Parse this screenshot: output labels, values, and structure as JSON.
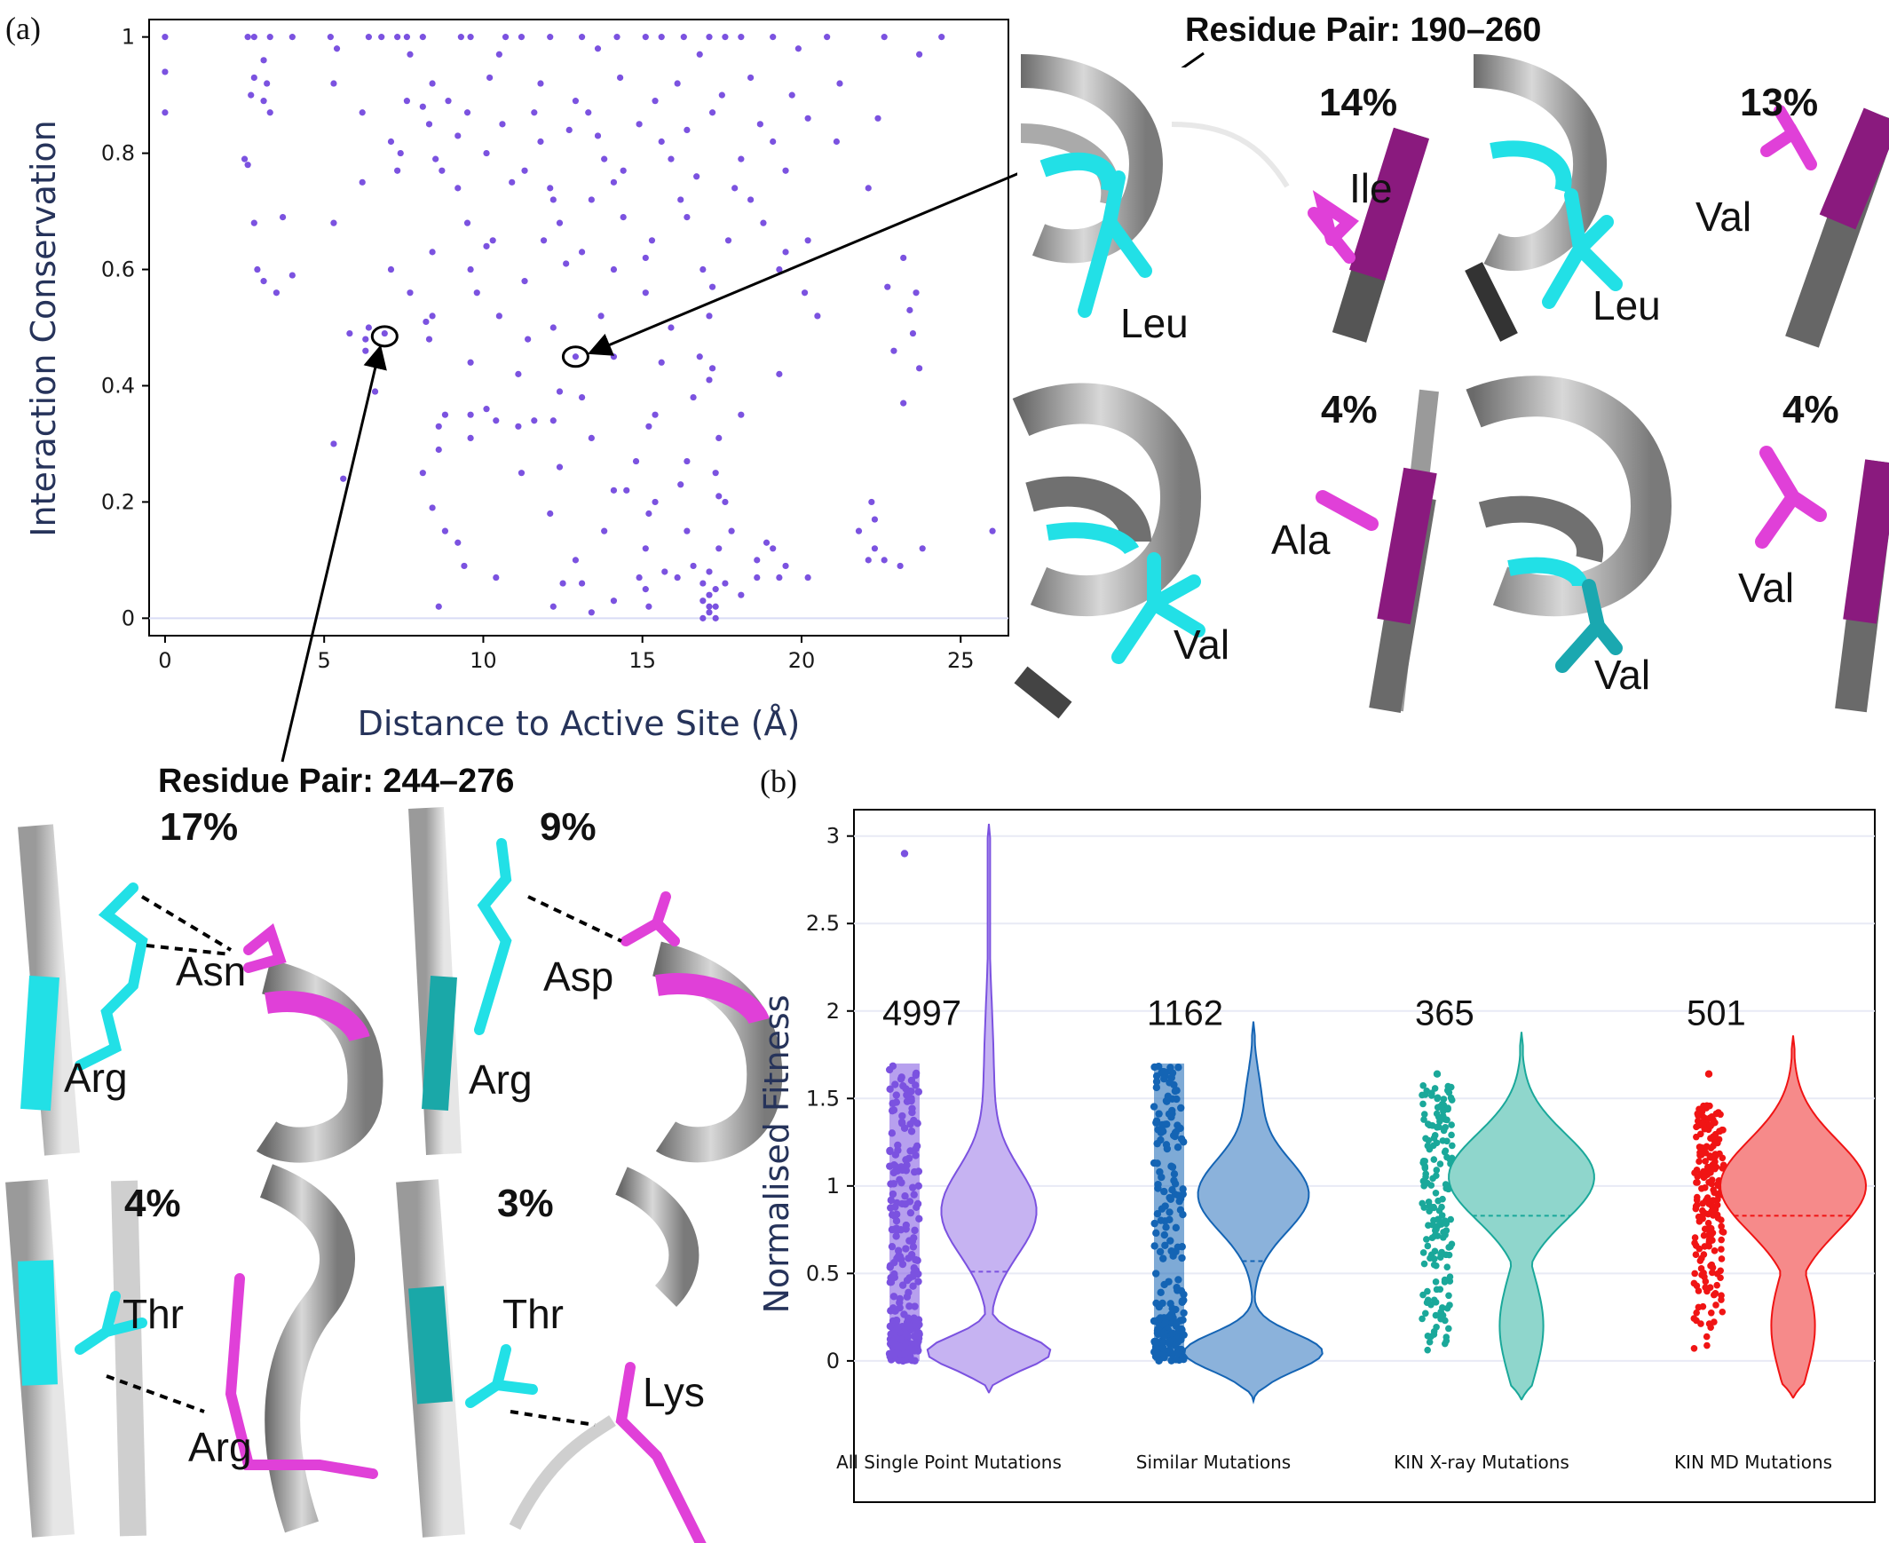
{
  "figure": {
    "panel_a_label": "(a)",
    "panel_b_label": "(b)"
  },
  "chart_data": [
    {
      "type": "scatter",
      "panel": "(a)",
      "xlabel": "Distance to Active Site (Å)",
      "ylabel": "Interaction Conservation",
      "xlim": [
        -0.5,
        26.5
      ],
      "ylim": [
        -0.03,
        1.03
      ],
      "xticks": [
        0,
        5,
        10,
        15,
        20,
        25
      ],
      "yticks": [
        0,
        0.2,
        0.4,
        0.6,
        0.8,
        1
      ],
      "grid": false,
      "color": "#7b52e0",
      "points": [
        [
          0,
          1
        ],
        [
          0,
          0.94
        ],
        [
          0,
          0.87
        ],
        [
          2.6,
          1
        ],
        [
          2.8,
          1
        ],
        [
          3.3,
          1
        ],
        [
          4,
          1
        ],
        [
          5.2,
          1
        ],
        [
          6.4,
          1
        ],
        [
          6.8,
          1
        ],
        [
          7.3,
          1
        ],
        [
          7.6,
          1
        ],
        [
          8.1,
          1
        ],
        [
          9.3,
          1
        ],
        [
          9.6,
          1
        ],
        [
          10.7,
          1
        ],
        [
          11.2,
          1
        ],
        [
          12.1,
          1
        ],
        [
          13.1,
          1
        ],
        [
          14.2,
          1
        ],
        [
          15.1,
          1
        ],
        [
          15.6,
          1
        ],
        [
          16.3,
          1
        ],
        [
          17.1,
          1
        ],
        [
          17.6,
          1
        ],
        [
          18.1,
          1
        ],
        [
          19.1,
          1
        ],
        [
          20.8,
          1
        ],
        [
          22.6,
          1
        ],
        [
          24.4,
          1
        ],
        [
          3.1,
          0.96
        ],
        [
          5.4,
          0.98
        ],
        [
          7.7,
          0.97
        ],
        [
          10.5,
          0.97
        ],
        [
          13.6,
          0.98
        ],
        [
          16.8,
          0.97
        ],
        [
          19.9,
          0.98
        ],
        [
          23.7,
          0.97
        ],
        [
          2.8,
          0.93
        ],
        [
          3.2,
          0.92
        ],
        [
          5.3,
          0.92
        ],
        [
          8.4,
          0.92
        ],
        [
          10.2,
          0.93
        ],
        [
          11.8,
          0.92
        ],
        [
          14.3,
          0.93
        ],
        [
          16.1,
          0.92
        ],
        [
          18.4,
          0.93
        ],
        [
          21.2,
          0.92
        ],
        [
          2.7,
          0.9
        ],
        [
          3.1,
          0.89
        ],
        [
          7.6,
          0.89
        ],
        [
          8.9,
          0.89
        ],
        [
          12.9,
          0.89
        ],
        [
          15.4,
          0.89
        ],
        [
          17.5,
          0.9
        ],
        [
          19.7,
          0.9
        ],
        [
          3.3,
          0.87
        ],
        [
          6.2,
          0.87
        ],
        [
          8.1,
          0.88
        ],
        [
          9.5,
          0.87
        ],
        [
          11.6,
          0.87
        ],
        [
          13.3,
          0.87
        ],
        [
          17.2,
          0.87
        ],
        [
          20.2,
          0.86
        ],
        [
          22.4,
          0.86
        ],
        [
          8.3,
          0.85
        ],
        [
          10.6,
          0.85
        ],
        [
          12.7,
          0.84
        ],
        [
          14.9,
          0.85
        ],
        [
          16.4,
          0.84
        ],
        [
          18.7,
          0.85
        ],
        [
          7.1,
          0.82
        ],
        [
          9.2,
          0.83
        ],
        [
          11.8,
          0.82
        ],
        [
          13.6,
          0.83
        ],
        [
          15.6,
          0.82
        ],
        [
          19.1,
          0.82
        ],
        [
          21.1,
          0.82
        ],
        [
          2.5,
          0.79
        ],
        [
          2.6,
          0.78
        ],
        [
          7.4,
          0.8
        ],
        [
          8.5,
          0.79
        ],
        [
          10.1,
          0.8
        ],
        [
          13.8,
          0.79
        ],
        [
          15.9,
          0.79
        ],
        [
          18.1,
          0.79
        ],
        [
          7.3,
          0.77
        ],
        [
          8.7,
          0.77
        ],
        [
          11.3,
          0.77
        ],
        [
          14.4,
          0.77
        ],
        [
          16.7,
          0.76
        ],
        [
          19.5,
          0.77
        ],
        [
          6.2,
          0.75
        ],
        [
          9.2,
          0.74
        ],
        [
          10.9,
          0.75
        ],
        [
          12.1,
          0.74
        ],
        [
          14.1,
          0.75
        ],
        [
          17.9,
          0.74
        ],
        [
          22.1,
          0.74
        ],
        [
          12.2,
          0.72
        ],
        [
          13.4,
          0.72
        ],
        [
          16.2,
          0.72
        ],
        [
          18.4,
          0.72
        ],
        [
          3.7,
          0.69
        ],
        [
          2.8,
          0.68
        ],
        [
          5.3,
          0.68
        ],
        [
          9.5,
          0.68
        ],
        [
          12.4,
          0.68
        ],
        [
          14.4,
          0.69
        ],
        [
          16.4,
          0.69
        ],
        [
          18.8,
          0.68
        ],
        [
          10.3,
          0.65
        ],
        [
          11.9,
          0.65
        ],
        [
          15.3,
          0.65
        ],
        [
          17.7,
          0.65
        ],
        [
          20.2,
          0.65
        ],
        [
          8.4,
          0.63
        ],
        [
          10.1,
          0.64
        ],
        [
          13.1,
          0.63
        ],
        [
          15.1,
          0.62
        ],
        [
          19.5,
          0.63
        ],
        [
          23.2,
          0.62
        ],
        [
          2.9,
          0.6
        ],
        [
          7.1,
          0.6
        ],
        [
          9.6,
          0.6
        ],
        [
          12.6,
          0.61
        ],
        [
          14.1,
          0.6
        ],
        [
          16.9,
          0.6
        ],
        [
          19.3,
          0.6
        ],
        [
          3.1,
          0.58
        ],
        [
          4,
          0.59
        ],
        [
          11.3,
          0.58
        ],
        [
          17.2,
          0.57
        ],
        [
          22.7,
          0.57
        ],
        [
          3.5,
          0.56
        ],
        [
          7.7,
          0.56
        ],
        [
          9.8,
          0.56
        ],
        [
          15.1,
          0.56
        ],
        [
          20.1,
          0.56
        ],
        [
          23.6,
          0.56
        ],
        [
          8.4,
          0.52
        ],
        [
          10.5,
          0.52
        ],
        [
          13.7,
          0.52
        ],
        [
          17.1,
          0.52
        ],
        [
          20.5,
          0.52
        ],
        [
          23.4,
          0.53
        ],
        [
          6.9,
          0.49
        ],
        [
          6.4,
          0.5
        ],
        [
          8.2,
          0.51
        ],
        [
          12.2,
          0.5
        ],
        [
          15.9,
          0.5
        ],
        [
          23.5,
          0.49
        ],
        [
          5.8,
          0.49
        ],
        [
          6.3,
          0.48
        ],
        [
          8.3,
          0.48
        ],
        [
          11.4,
          0.48
        ],
        [
          6.3,
          0.46
        ],
        [
          12.9,
          0.45
        ],
        [
          14.1,
          0.45
        ],
        [
          16.8,
          0.45
        ],
        [
          22.9,
          0.46
        ],
        [
          6.6,
          0.44
        ],
        [
          9.6,
          0.44
        ],
        [
          15.6,
          0.44
        ],
        [
          17.2,
          0.43
        ],
        [
          19.3,
          0.42
        ],
        [
          23.7,
          0.43
        ],
        [
          11.1,
          0.42
        ],
        [
          17.1,
          0.41
        ],
        [
          6.6,
          0.39
        ],
        [
          12.4,
          0.39
        ],
        [
          16.6,
          0.38
        ],
        [
          13.1,
          0.38
        ],
        [
          8.8,
          0.35
        ],
        [
          9.6,
          0.35
        ],
        [
          10.1,
          0.36
        ],
        [
          11.6,
          0.34
        ],
        [
          15.4,
          0.35
        ],
        [
          23.2,
          0.37
        ],
        [
          8.6,
          0.33
        ],
        [
          10.4,
          0.34
        ],
        [
          11.1,
          0.33
        ],
        [
          12.2,
          0.34
        ],
        [
          18.1,
          0.35
        ],
        [
          15.2,
          0.33
        ],
        [
          5.3,
          0.3
        ],
        [
          8.6,
          0.29
        ],
        [
          9.6,
          0.31
        ],
        [
          13.4,
          0.31
        ],
        [
          17.4,
          0.31
        ],
        [
          14.8,
          0.27
        ],
        [
          16.4,
          0.27
        ],
        [
          8.1,
          0.25
        ],
        [
          11.2,
          0.25
        ],
        [
          12.4,
          0.26
        ],
        [
          17.3,
          0.25
        ],
        [
          5.6,
          0.24
        ],
        [
          14.1,
          0.22
        ],
        [
          14.5,
          0.22
        ],
        [
          16.2,
          0.23
        ],
        [
          17.4,
          0.21
        ],
        [
          15.4,
          0.2
        ],
        [
          17.6,
          0.2
        ],
        [
          8.4,
          0.19
        ],
        [
          12.1,
          0.18
        ],
        [
          15.2,
          0.18
        ],
        [
          22.2,
          0.2
        ],
        [
          22.3,
          0.17
        ],
        [
          8.8,
          0.15
        ],
        [
          13.8,
          0.15
        ],
        [
          16.4,
          0.15
        ],
        [
          17.8,
          0.15
        ],
        [
          21.8,
          0.15
        ],
        [
          26,
          0.15
        ],
        [
          9.2,
          0.13
        ],
        [
          15.1,
          0.12
        ],
        [
          17.4,
          0.12
        ],
        [
          18.9,
          0.13
        ],
        [
          19.1,
          0.12
        ],
        [
          22.3,
          0.12
        ],
        [
          23.8,
          0.12
        ],
        [
          18.6,
          0.1
        ],
        [
          22.1,
          0.1
        ],
        [
          22.6,
          0.1
        ],
        [
          23.1,
          0.09
        ],
        [
          12.9,
          0.1
        ],
        [
          9.4,
          0.09
        ],
        [
          10.4,
          0.07
        ],
        [
          15.7,
          0.08
        ],
        [
          16.6,
          0.09
        ],
        [
          17.1,
          0.08
        ],
        [
          19.3,
          0.07
        ],
        [
          19.5,
          0.09
        ],
        [
          20.2,
          0.07
        ],
        [
          12.5,
          0.06
        ],
        [
          13.1,
          0.06
        ],
        [
          14.9,
          0.07
        ],
        [
          16.1,
          0.07
        ],
        [
          17.6,
          0.06
        ],
        [
          18.6,
          0.07
        ],
        [
          15.1,
          0.05
        ],
        [
          16.9,
          0.06
        ],
        [
          17.3,
          0.05
        ],
        [
          18.1,
          0.04
        ],
        [
          17.1,
          0.04
        ],
        [
          16.9,
          0.03
        ],
        [
          17.3,
          0.02
        ],
        [
          14.1,
          0.03
        ],
        [
          12.2,
          0.02
        ],
        [
          8.6,
          0.02
        ],
        [
          15.2,
          0.02
        ],
        [
          17.1,
          0.01
        ],
        [
          13.4,
          0.01
        ],
        [
          16.9,
          0
        ],
        [
          17.3,
          0
        ],
        [
          17.1,
          0.02
        ]
      ],
      "annotations": [
        {
          "label": "Residue Pair: 244–276",
          "x": 6.9,
          "y": 0.485
        },
        {
          "label": "Residue Pair: 190–260",
          "x": 12.9,
          "y": 0.45
        }
      ]
    },
    {
      "type": "violin",
      "panel": "(b)",
      "ylabel": "Normalised Fitness",
      "ylim": [
        -0.3,
        3.1
      ],
      "yticks": [
        0,
        0.5,
        1,
        1.5,
        2,
        2.5,
        3
      ],
      "grid": true,
      "categories": [
        "All Single Point Mutations",
        "Similar Mutations",
        "KIN X-ray Mutations",
        "KIN MD Mutations"
      ],
      "series": [
        {
          "category": "All Single Point Mutations",
          "count": "4997",
          "color": "#7b52e0",
          "fill": "#c6b3f2",
          "y_min": -0.18,
          "y_max": 3.07,
          "median": 0.51,
          "strip_max": 1.7,
          "outlier": 2.9
        },
        {
          "category": "Similar Mutations",
          "count": "1162",
          "color": "#1464b4",
          "fill": "#8bb2db",
          "y_min": -0.23,
          "y_max": 1.94,
          "median": 0.57,
          "strip_max": 1.7,
          "outlier": null
        },
        {
          "category": "KIN X-ray Mutations",
          "count": "365",
          "color": "#1aa89a",
          "fill": "#8fd6cc",
          "y_min": -0.22,
          "y_max": 1.88,
          "median": 0.83,
          "strip_max": 1.59,
          "outlier": 1.64
        },
        {
          "category": "KIN MD Mutations",
          "count": "501",
          "color": "#f01414",
          "fill": "#f68a8a",
          "y_min": -0.21,
          "y_max": 1.86,
          "median": 0.83,
          "strip_max": 1.46,
          "outlier": 1.64
        }
      ]
    }
  ],
  "structures": {
    "pair_a": {
      "panels": [
        {
          "percent": "14%",
          "residue_left": "Leu",
          "residue_right": "Ile"
        },
        {
          "percent": "13%",
          "residue_left": "Leu",
          "residue_right": "Val"
        },
        {
          "percent": "4%",
          "residue_left": "Val",
          "residue_right": "Ala"
        },
        {
          "percent": "4%",
          "residue_left": "Val",
          "residue_right": "Val"
        }
      ]
    },
    "pair_b": {
      "panels": [
        {
          "percent": "17%",
          "residue_left": "Arg",
          "residue_right": "Asn"
        },
        {
          "percent": "9%",
          "residue_left": "Arg",
          "residue_right": "Asp"
        },
        {
          "percent": "4%",
          "residue_left": "Thr",
          "residue_right": "Arg"
        },
        {
          "percent": "3%",
          "residue_left": "Thr",
          "residue_right": "Lys"
        }
      ]
    },
    "colors": {
      "cyan": "#22e0e6",
      "magenta": "#e040d8",
      "dark_magenta": "#8a1a7e",
      "grey": "#8c8c8c",
      "light_grey": "#dcdcdc"
    }
  }
}
